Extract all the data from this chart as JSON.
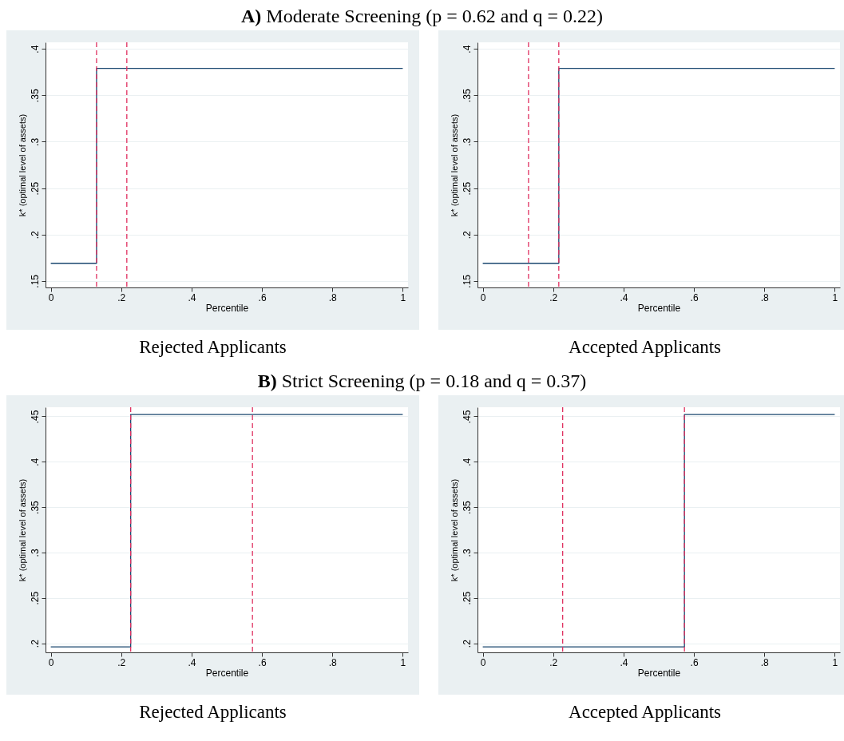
{
  "chart_data": [
    {
      "type": "step",
      "title": "A) Moderate Screening (p = 0.62 and q = 0.22)",
      "xlabel": "Percentile",
      "ylabel": "k* (optimal level of assets)",
      "annotations": [
        "Rejected Applicants"
      ],
      "x": [
        0,
        0.13,
        1
      ],
      "values": [
        0.169,
        0.379,
        0.379
      ],
      "color": "#1a476f",
      "xlim": [
        -0.015,
        1.015
      ],
      "ylim": [
        0.143,
        0.407
      ],
      "xticks": [
        {
          "value": 0,
          "label": "0"
        },
        {
          "value": 0.2,
          "label": ".2"
        },
        {
          "value": 0.4,
          "label": ".4"
        },
        {
          "value": 0.6,
          "label": ".6"
        },
        {
          "value": 0.8,
          "label": ".8"
        },
        {
          "value": 1,
          "label": "1"
        }
      ],
      "yticks": [
        {
          "value": 0.15,
          "label": ".15"
        },
        {
          "value": 0.2,
          "label": ".2"
        },
        {
          "value": 0.25,
          "label": ".25"
        },
        {
          "value": 0.3,
          "label": ".3"
        },
        {
          "value": 0.35,
          "label": ".35"
        },
        {
          "value": 0.4,
          "label": ".4"
        }
      ],
      "grid": "y",
      "ref_lines": [
        {
          "axis": "x",
          "value": 0.13,
          "color": "#e03060",
          "line_style": "dashed"
        },
        {
          "axis": "x",
          "value": 0.216,
          "color": "#e03060",
          "line_style": "dashed"
        }
      ]
    },
    {
      "type": "step",
      "xlabel": "Percentile",
      "ylabel": "k* (optimal level of assets)",
      "annotations": [
        "Accepted Applicants"
      ],
      "x": [
        0,
        0.216,
        1
      ],
      "values": [
        0.169,
        0.379,
        0.379
      ],
      "color": "#1a476f",
      "xlim": [
        -0.015,
        1.015
      ],
      "ylim": [
        0.143,
        0.407
      ],
      "xticks": [
        {
          "value": 0,
          "label": "0"
        },
        {
          "value": 0.2,
          "label": ".2"
        },
        {
          "value": 0.4,
          "label": ".4"
        },
        {
          "value": 0.6,
          "label": ".6"
        },
        {
          "value": 0.8,
          "label": ".8"
        },
        {
          "value": 1,
          "label": "1"
        }
      ],
      "yticks": [
        {
          "value": 0.15,
          "label": ".15"
        },
        {
          "value": 0.2,
          "label": ".2"
        },
        {
          "value": 0.25,
          "label": ".25"
        },
        {
          "value": 0.3,
          "label": ".3"
        },
        {
          "value": 0.35,
          "label": ".35"
        },
        {
          "value": 0.4,
          "label": ".4"
        }
      ],
      "grid": "y",
      "ref_lines": [
        {
          "axis": "x",
          "value": 0.13,
          "color": "#e03060",
          "line_style": "dashed"
        },
        {
          "axis": "x",
          "value": 0.216,
          "color": "#e03060",
          "line_style": "dashed"
        }
      ]
    },
    {
      "type": "step",
      "title": "B) Strict Screening (p = 0.18 and q = 0.37)",
      "xlabel": "Percentile",
      "ylabel": "k* (optimal level of assets)",
      "annotations": [
        "Rejected Applicants"
      ],
      "x": [
        0,
        0.227,
        1
      ],
      "values": [
        0.196,
        0.452,
        0.452
      ],
      "color": "#1a476f",
      "xlim": [
        -0.015,
        1.015
      ],
      "ylim": [
        0.19,
        0.46
      ],
      "xticks": [
        {
          "value": 0,
          "label": "0"
        },
        {
          "value": 0.2,
          "label": ".2"
        },
        {
          "value": 0.4,
          "label": ".4"
        },
        {
          "value": 0.6,
          "label": ".6"
        },
        {
          "value": 0.8,
          "label": ".8"
        },
        {
          "value": 1,
          "label": "1"
        }
      ],
      "yticks": [
        {
          "value": 0.2,
          "label": ".2"
        },
        {
          "value": 0.25,
          "label": ".25"
        },
        {
          "value": 0.3,
          "label": ".3"
        },
        {
          "value": 0.35,
          "label": ".35"
        },
        {
          "value": 0.4,
          "label": ".4"
        },
        {
          "value": 0.45,
          "label": ".45"
        }
      ],
      "grid": "y",
      "ref_lines": [
        {
          "axis": "x",
          "value": 0.227,
          "color": "#e03060",
          "line_style": "dashed"
        },
        {
          "axis": "x",
          "value": 0.573,
          "color": "#e03060",
          "line_style": "dashed"
        }
      ]
    },
    {
      "type": "step",
      "xlabel": "Percentile",
      "ylabel": "k* (optimal level of assets)",
      "annotations": [
        "Accepted Applicants"
      ],
      "x": [
        0,
        0.573,
        1
      ],
      "values": [
        0.196,
        0.452,
        0.452
      ],
      "color": "#1a476f",
      "xlim": [
        -0.015,
        1.015
      ],
      "ylim": [
        0.19,
        0.46
      ],
      "xticks": [
        {
          "value": 0,
          "label": "0"
        },
        {
          "value": 0.2,
          "label": ".2"
        },
        {
          "value": 0.4,
          "label": ".4"
        },
        {
          "value": 0.6,
          "label": ".6"
        },
        {
          "value": 0.8,
          "label": ".8"
        },
        {
          "value": 1,
          "label": "1"
        }
      ],
      "yticks": [
        {
          "value": 0.2,
          "label": ".2"
        },
        {
          "value": 0.25,
          "label": ".25"
        },
        {
          "value": 0.3,
          "label": ".3"
        },
        {
          "value": 0.35,
          "label": ".35"
        },
        {
          "value": 0.4,
          "label": ".4"
        },
        {
          "value": 0.45,
          "label": ".45"
        }
      ],
      "grid": "y",
      "ref_lines": [
        {
          "axis": "x",
          "value": 0.227,
          "color": "#e03060",
          "line_style": "dashed"
        },
        {
          "axis": "x",
          "value": 0.573,
          "color": "#e03060",
          "line_style": "dashed"
        }
      ]
    }
  ]
}
